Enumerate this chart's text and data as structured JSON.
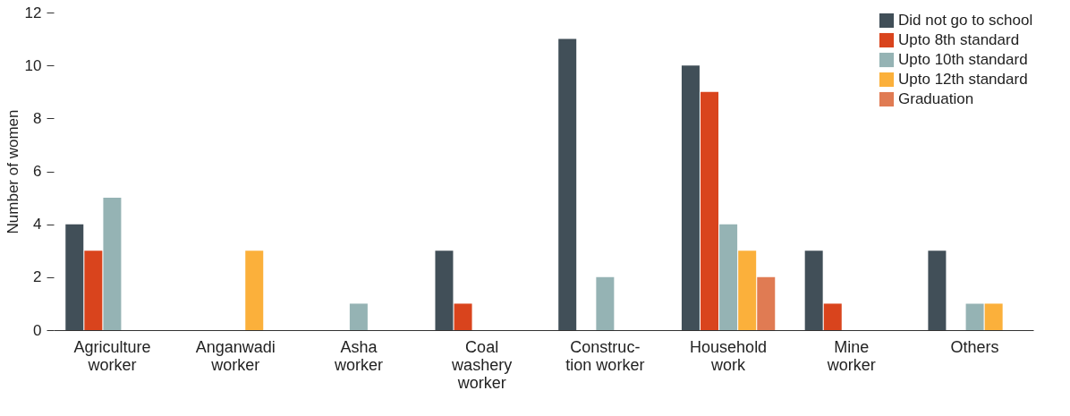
{
  "chart_data": {
    "type": "bar",
    "ylabel": "Number of women",
    "categories": [
      "Agriculture\nworker",
      "Anganwadi\nworker",
      "Asha\nworker",
      "Coal\nwashery\nworker",
      "Construc-\ntion worker",
      "Household\nwork",
      "Mine\nworker",
      "Others"
    ],
    "series": [
      {
        "name": "Did not go to school",
        "color": "#414f58",
        "values": [
          4,
          null,
          null,
          3,
          11,
          10,
          3,
          3
        ]
      },
      {
        "name": "Upto 8th standard",
        "color": "#d9441d",
        "values": [
          3,
          null,
          null,
          1,
          null,
          9,
          1,
          null
        ]
      },
      {
        "name": "Upto 10th standard",
        "color": "#95b3b4",
        "values": [
          5,
          null,
          1,
          null,
          2,
          4,
          null,
          1
        ]
      },
      {
        "name": "Upto 12th standard",
        "color": "#fbb03b",
        "values": [
          null,
          3,
          null,
          null,
          null,
          3,
          null,
          1
        ]
      },
      {
        "name": "Graduation",
        "color": "#e07b53",
        "values": [
          null,
          null,
          null,
          null,
          null,
          2,
          null,
          null
        ]
      }
    ],
    "ylim": [
      0,
      12
    ],
    "yticks": [
      0,
      2,
      4,
      6,
      8,
      10,
      12
    ],
    "grid": false,
    "legend": "top right"
  }
}
